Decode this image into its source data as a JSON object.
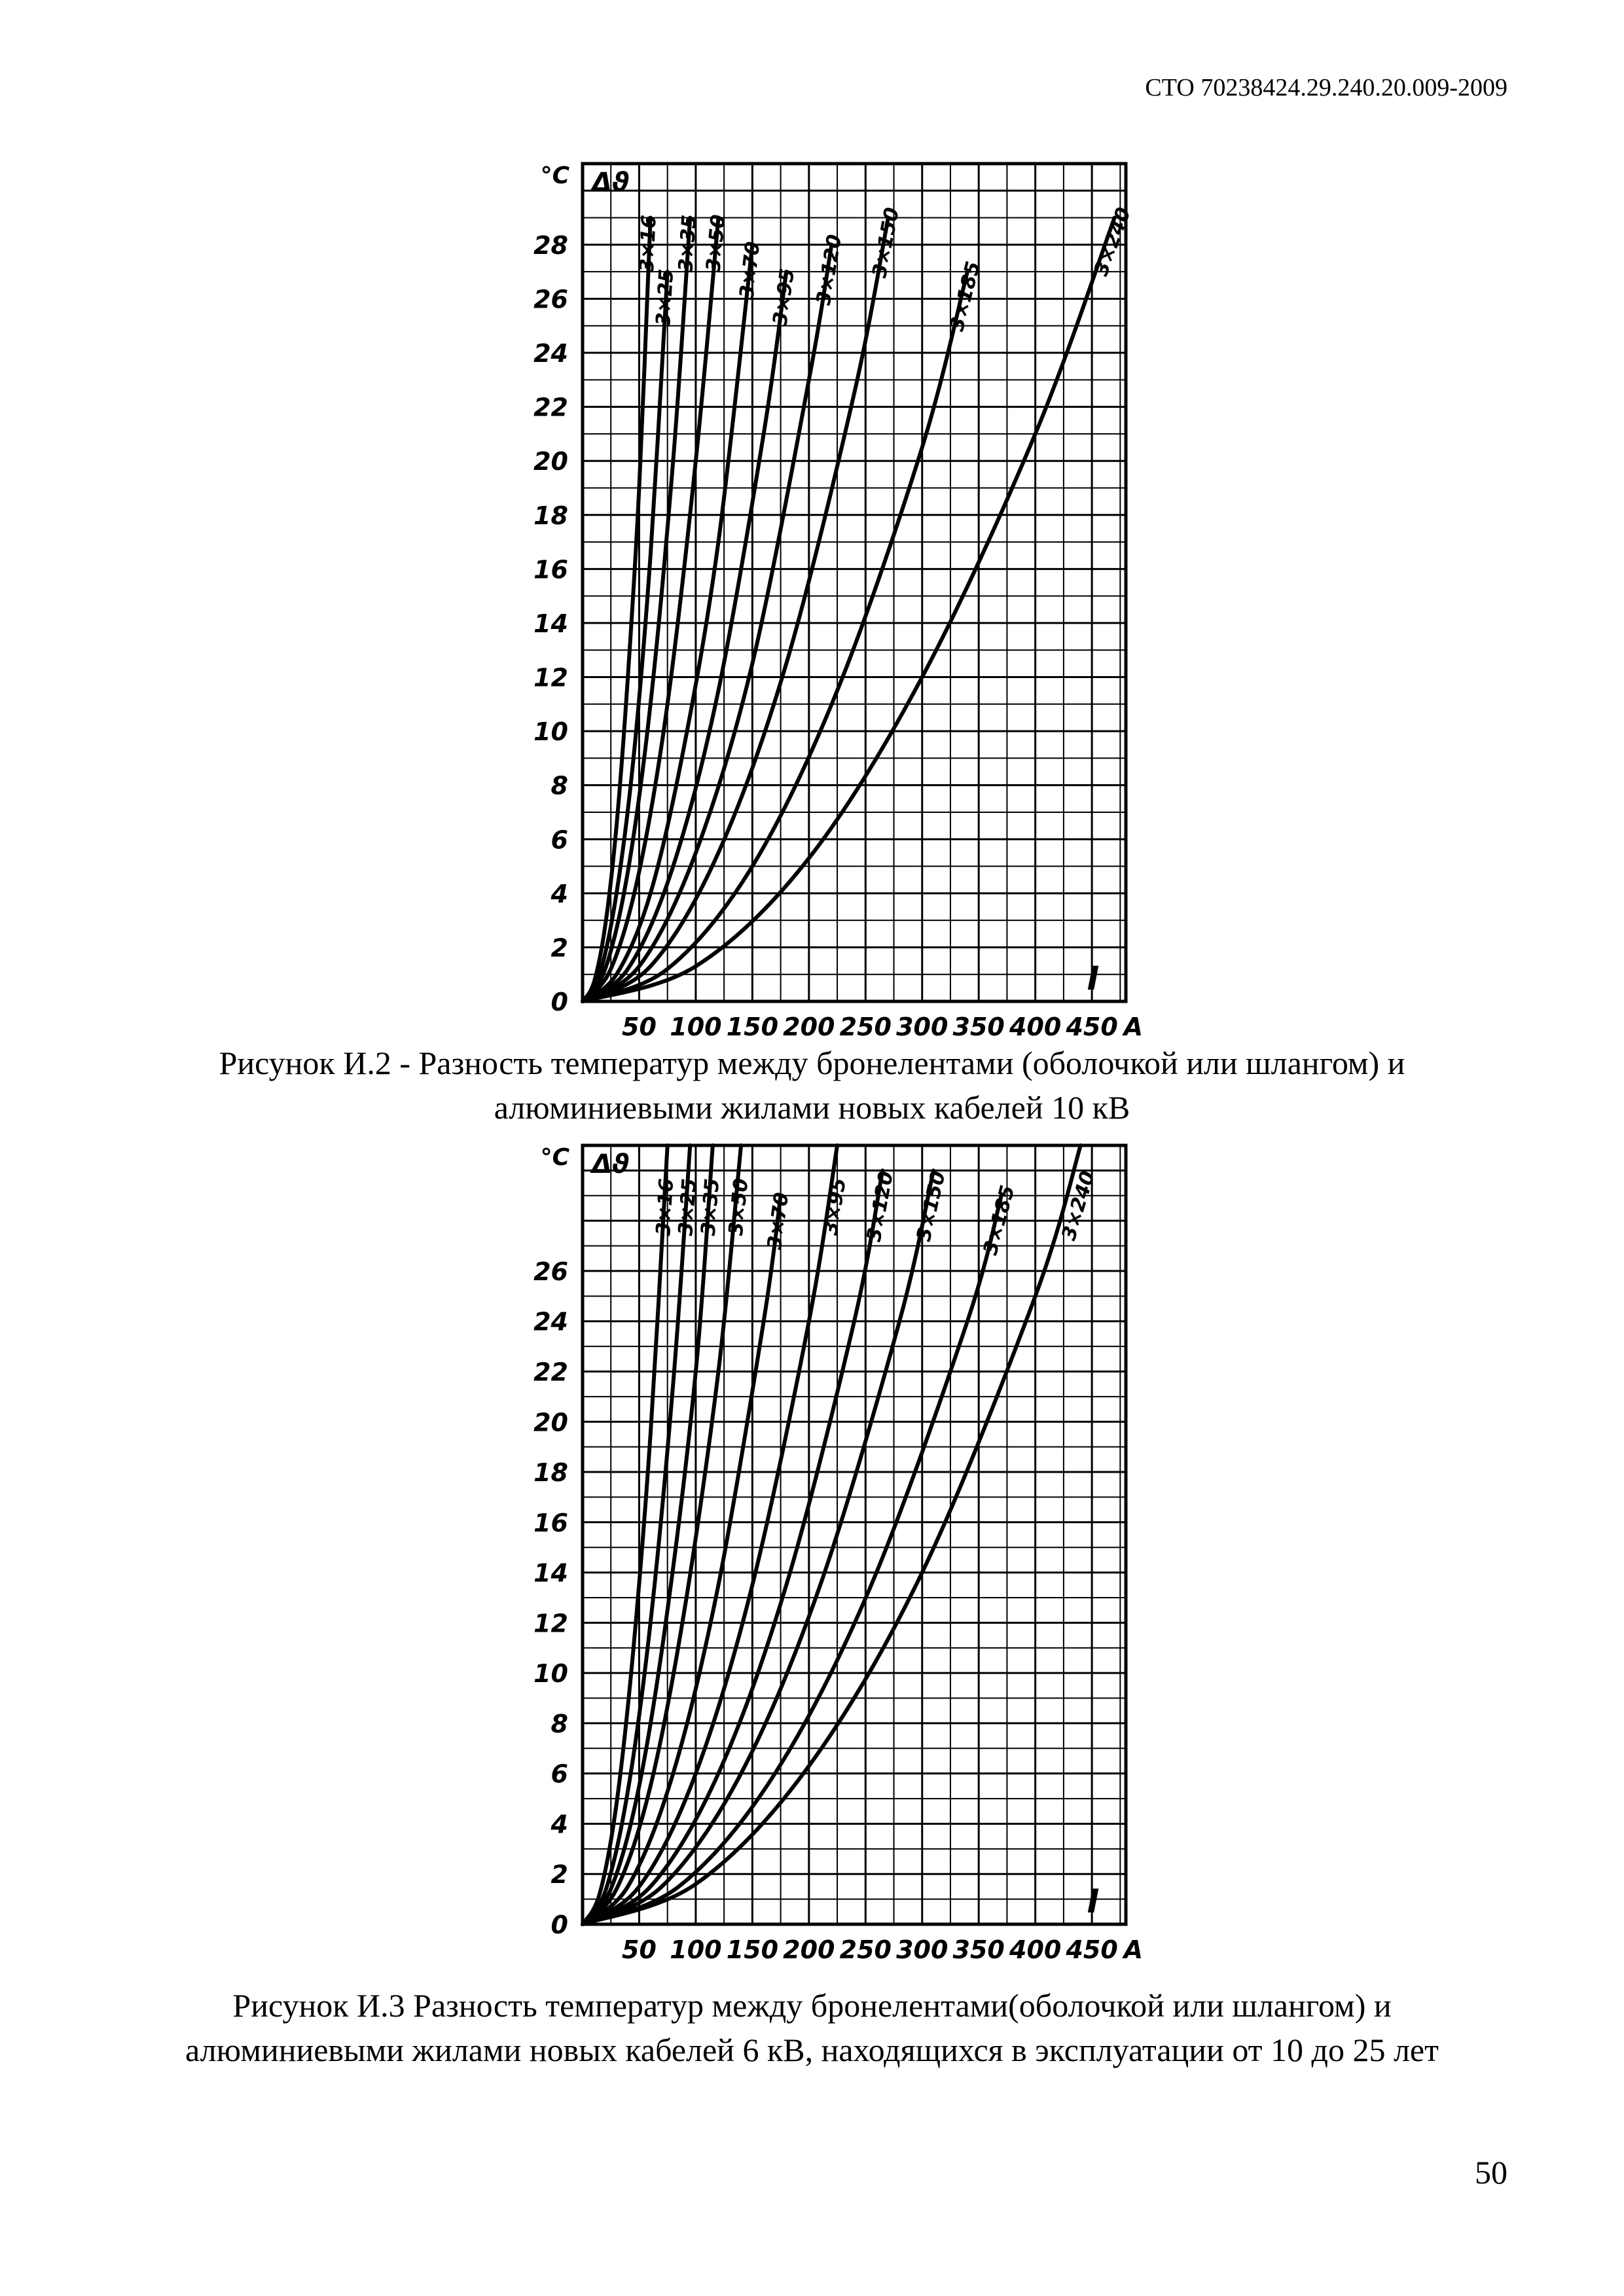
{
  "header": {
    "doc_code": "СТО 70238424.29.240.20.009-2009"
  },
  "page_number": "50",
  "chart_data": [
    {
      "type": "line",
      "title": "",
      "caption": "Рисунок И.2 - Разность температур между бронелентами (оболочкой или шлангом) и алюминиевыми жилами новых кабелей 10 кВ",
      "ylabel": "°C",
      "ysymbol": "Δϑ",
      "xlabel": "I",
      "xunit": "A",
      "xlim": [
        0,
        480
      ],
      "ylim": [
        0,
        31
      ],
      "x_ticks": [
        50,
        100,
        150,
        200,
        250,
        300,
        350,
        400,
        450
      ],
      "x_tick_labels": [
        "50",
        "100",
        "150",
        "200",
        "250",
        "300",
        "350",
        "400",
        "450"
      ],
      "y_ticks": [
        0,
        2,
        4,
        6,
        8,
        10,
        12,
        14,
        16,
        18,
        20,
        22,
        24,
        26,
        28
      ],
      "y_tick_labels": [
        "0",
        "2",
        "4",
        "6",
        "8",
        "10",
        "12",
        "14",
        "16",
        "18",
        "20",
        "22",
        "24",
        "26",
        "28"
      ],
      "grid": true,
      "series": [
        {
          "name": "3×16",
          "x": [
            0,
            10,
            20,
            30,
            40,
            50,
            60
          ],
          "y": [
            0,
            0.7,
            2.8,
            6.5,
            12,
            19,
            29
          ]
        },
        {
          "name": "3×25",
          "x": [
            0,
            15,
            30,
            45,
            60,
            75
          ],
          "y": [
            0,
            1,
            4,
            9,
            16.5,
            27
          ]
        },
        {
          "name": "3×35",
          "x": [
            0,
            20,
            40,
            60,
            80,
            95
          ],
          "y": [
            0,
            1.2,
            4.8,
            11,
            20,
            29
          ]
        },
        {
          "name": "3×50",
          "x": [
            0,
            25,
            50,
            75,
            100,
            120
          ],
          "y": [
            0,
            1.2,
            4.8,
            11,
            20,
            29
          ]
        },
        {
          "name": "3×70",
          "x": [
            0,
            30,
            60,
            90,
            120,
            150
          ],
          "y": [
            0,
            1,
            4,
            9.5,
            17,
            28
          ]
        },
        {
          "name": "3×95",
          "x": [
            0,
            40,
            80,
            120,
            160,
            180
          ],
          "y": [
            0,
            1.2,
            5,
            11.5,
            21,
            27
          ]
        },
        {
          "name": "3×120",
          "x": [
            0,
            50,
            100,
            150,
            200,
            220
          ],
          "y": [
            0,
            1.3,
            5.5,
            12.5,
            23,
            28
          ]
        },
        {
          "name": "3×150",
          "x": [
            0,
            60,
            120,
            180,
            240,
            270
          ],
          "y": [
            0,
            1.3,
            5.5,
            12.5,
            22.5,
            29
          ]
        },
        {
          "name": "3×185",
          "x": [
            0,
            75,
            150,
            225,
            300,
            340
          ],
          "y": [
            0,
            1.2,
            5,
            11.5,
            20.5,
            27
          ]
        },
        {
          "name": "3×240",
          "x": [
            0,
            100,
            200,
            300,
            400,
            470
          ],
          "y": [
            0,
            1.3,
            5.3,
            12,
            21,
            29
          ]
        }
      ]
    },
    {
      "type": "line",
      "title": "",
      "caption": "Рисунок И.3  Разность температур между бронелентами(оболочкой или шлангом) и алюминиевыми жилами новых кабелей 6 кВ, находящихся в эксплуатации от 10 до 25 лет",
      "ylabel": "°C",
      "ysymbol": "Δϑ",
      "xlabel": "I",
      "xunit": "A",
      "xlim": [
        0,
        480
      ],
      "ylim": [
        0,
        31
      ],
      "x_ticks": [
        50,
        100,
        150,
        200,
        250,
        300,
        350,
        400,
        450
      ],
      "x_tick_labels": [
        "50",
        "100",
        "150",
        "200",
        "250",
        "300",
        "350",
        "400",
        "450"
      ],
      "y_ticks": [
        0,
        2,
        4,
        6,
        8,
        10,
        12,
        14,
        16,
        18,
        20,
        22,
        24,
        26
      ],
      "y_tick_labels": [
        "0",
        "2",
        "4",
        "6",
        "8",
        "10",
        "12",
        "14",
        "16",
        "18",
        "20",
        "22",
        "24",
        "26"
      ],
      "grid": true,
      "series": [
        {
          "name": "3×16",
          "x": [
            0,
            15,
            30,
            45,
            60,
            75
          ],
          "y": [
            0,
            1.2,
            4.8,
            11,
            19.5,
            31
          ]
        },
        {
          "name": "3×25",
          "x": [
            0,
            20,
            40,
            60,
            80,
            95
          ],
          "y": [
            0,
            1.3,
            5.3,
            12,
            21.5,
            31
          ]
        },
        {
          "name": "3×35",
          "x": [
            0,
            25,
            50,
            75,
            100,
            115
          ],
          "y": [
            0,
            1.4,
            5.5,
            12.5,
            22,
            31
          ]
        },
        {
          "name": "3×50",
          "x": [
            0,
            30,
            60,
            90,
            120,
            140
          ],
          "y": [
            0,
            1.4,
            5.5,
            12.5,
            22,
            31
          ]
        },
        {
          "name": "3×70",
          "x": [
            0,
            40,
            80,
            120,
            160,
            175
          ],
          "y": [
            0,
            1.5,
            6,
            13.5,
            24,
            29
          ]
        },
        {
          "name": "3×95",
          "x": [
            0,
            50,
            100,
            150,
            200,
            225
          ],
          "y": [
            0,
            1.5,
            6,
            13.5,
            24,
            31
          ]
        },
        {
          "name": "3×120",
          "x": [
            0,
            60,
            120,
            180,
            240,
            265
          ],
          "y": [
            0,
            1.5,
            6,
            13.5,
            24,
            30
          ]
        },
        {
          "name": "3×150",
          "x": [
            0,
            70,
            140,
            210,
            280,
            310
          ],
          "y": [
            0,
            1.5,
            6,
            13.5,
            24,
            30
          ]
        },
        {
          "name": "3×185",
          "x": [
            0,
            85,
            170,
            255,
            340,
            370
          ],
          "y": [
            0,
            1.5,
            6,
            13.5,
            24,
            29
          ]
        },
        {
          "name": "3×240",
          "x": [
            0,
            100,
            200,
            300,
            400,
            440
          ],
          "y": [
            0,
            1.6,
            6.3,
            14,
            25,
            31
          ]
        }
      ]
    }
  ]
}
